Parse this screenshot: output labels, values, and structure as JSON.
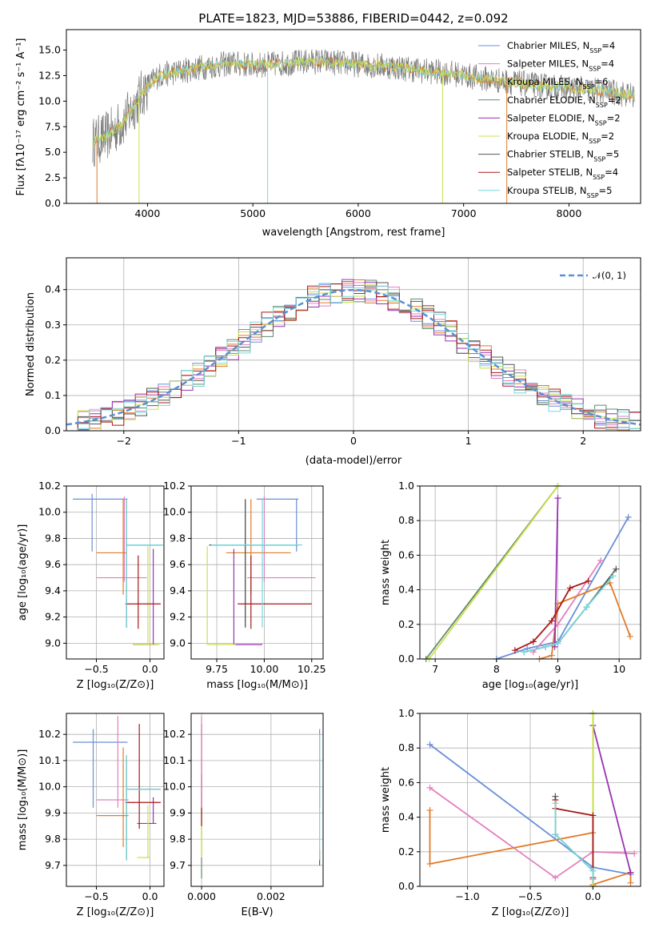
{
  "colors": [
    "#6a8fd8",
    "#e37fbf",
    "#e07b2a",
    "#5f8a6a",
    "#9a32b0",
    "#ccdf48",
    "#555555",
    "#a81818",
    "#78d7dd"
  ],
  "chart_data": [
    {
      "type": "line",
      "title": "PLATE=1823, MJD=53886, FIBERID=0442, z=0.092",
      "xlabel": "wavelength [Angstrom, rest frame]",
      "ylabel": "Flux [fλ10⁻¹⁷ erg cm⁻² s⁻¹ A⁻¹]",
      "xlim": [
        3230,
        8680
      ],
      "ylim": [
        0,
        17
      ],
      "xticks": [
        4000,
        5000,
        6000,
        7000,
        8000
      ],
      "yticks": [
        "0.0",
        "2.5",
        "5.0",
        "7.5",
        "10.0",
        "12.5",
        "15.0"
      ],
      "legend_position": "top-right",
      "series": [
        {
          "name": "Chabrier MILES, N_SSP=4"
        },
        {
          "name": "Salpeter MILES, N_SSP=4"
        },
        {
          "name": "Kroupa MILES, N_SSP=6"
        },
        {
          "name": "Chabrier ELODIE, N_SSP=2"
        },
        {
          "name": "Salpeter ELODIE, N_SSP=2"
        },
        {
          "name": "Kroupa ELODIE, N_SSP=2"
        },
        {
          "name": "Chabrier STELIB, N_SSP=5"
        },
        {
          "name": "Salpeter STELIB, N_SSP=4"
        },
        {
          "name": "Kroupa STELIB, N_SSP=5"
        }
      ],
      "continuum": {
        "x": [
          3480,
          3600,
          3700,
          3800,
          3900,
          4000,
          4100,
          4300,
          4500,
          4800,
          5000,
          5300,
          5600,
          6000,
          6300,
          6600,
          6900,
          7200,
          7500,
          7800,
          8100,
          8300,
          8600
        ],
        "y": [
          6.0,
          6.5,
          7.3,
          8.3,
          10.0,
          11.5,
          12.5,
          12.9,
          13.3,
          13.7,
          13.5,
          13.7,
          13.9,
          13.6,
          13.4,
          13.0,
          12.7,
          12.2,
          11.8,
          11.4,
          11.2,
          11.0,
          10.6
        ]
      }
    },
    {
      "type": "line",
      "xlabel": "(data-model)/error",
      "ylabel": "Normed distribution",
      "xlim": [
        -2.5,
        2.5
      ],
      "ylim": [
        0,
        0.49
      ],
      "xticks": [
        -2,
        -1,
        0,
        1,
        2
      ],
      "yticks": [
        "0.0",
        "0.1",
        "0.2",
        "0.3",
        "0.4"
      ],
      "legend": [
        "𝒩(0, 1)"
      ],
      "legend_position": "top-right",
      "hist_bins": [
        -2.5,
        -2.4,
        -2.3,
        -2.2,
        -2.1,
        -2.0,
        -1.9,
        -1.8,
        -1.7,
        -1.6,
        -1.5,
        -1.4,
        -1.3,
        -1.2,
        -1.1,
        -1.0,
        -0.9,
        -0.8,
        -0.7,
        -0.6,
        -0.5,
        -0.4,
        -0.3,
        -0.2,
        -0.1,
        0.0,
        0.1,
        0.2,
        0.3,
        0.4,
        0.5,
        0.6,
        0.7,
        0.8,
        0.9,
        1.0,
        1.1,
        1.2,
        1.3,
        1.4,
        1.5,
        1.6,
        1.7,
        1.8,
        1.9,
        2.0,
        2.1,
        2.2,
        2.3,
        2.4,
        2.5
      ]
    },
    {
      "type": "scatter",
      "xlabel": "Z [log₁₀(Z/Z⊙)]",
      "ylabel": "age  [log₁₀(age/yr)]",
      "xlim": [
        -0.78,
        0.13
      ],
      "ylim": [
        8.88,
        10.2
      ],
      "xticks": [
        "−0.5",
        "0.0"
      ],
      "yticks": [
        "9.0",
        "9.2",
        "9.4",
        "9.6",
        "9.8",
        "10.0",
        "10.2"
      ],
      "points": [
        {
          "s": 0,
          "x": -0.54,
          "y": 10.1,
          "xe": [
            -0.72,
            -0.21
          ],
          "ye": [
            9.7,
            10.14
          ]
        },
        {
          "s": 1,
          "x": -0.24,
          "y": 9.5,
          "xe": [
            -0.5,
            -0.03
          ],
          "ye": [
            9.47,
            10.12
          ]
        },
        {
          "s": 2,
          "x": -0.25,
          "y": 9.69,
          "xe": [
            -0.5,
            -0.22
          ],
          "ye": [
            9.37,
            10.1
          ]
        },
        {
          "s": 3,
          "x": -0.22,
          "y": 9.75,
          "xe": [
            -0.22,
            0.1
          ],
          "ye": [
            9.12,
            10.1
          ]
        },
        {
          "s": 4,
          "x": 0.03,
          "y": 8.99,
          "xe": [
            -0.16,
            0.06
          ],
          "ye": [
            8.99,
            9.72
          ]
        },
        {
          "s": 5,
          "x": -0.02,
          "y": 8.99,
          "xe": [
            -0.16,
            0.09
          ],
          "ye": [
            8.99,
            9.74
          ]
        },
        {
          "s": 6,
          "x": -0.22,
          "y": 9.75,
          "xe": [
            -0.22,
            0.12
          ],
          "ye": [
            9.12,
            10.1
          ]
        },
        {
          "s": 7,
          "x": -0.11,
          "y": 9.3,
          "xe": [
            -0.23,
            0.1
          ],
          "ye": [
            9.11,
            9.67
          ]
        },
        {
          "s": 8,
          "x": -0.22,
          "y": 9.75,
          "xe": [
            -0.22,
            0.12
          ],
          "ye": [
            9.12,
            10.1
          ]
        }
      ]
    },
    {
      "type": "scatter",
      "xlabel": "mass [log₁₀(M/M⊙)]",
      "ylabel": "",
      "xlim": [
        9.615,
        10.31
      ],
      "ylim": [
        8.88,
        10.2
      ],
      "xticks": [
        "9.75",
        "10.00",
        "10.25"
      ],
      "yticks": [
        "9.0",
        "9.2",
        "9.4",
        "9.6",
        "9.8",
        "10.0",
        "10.2"
      ],
      "points": [
        {
          "s": 0,
          "x": 10.17,
          "y": 10.1,
          "xe": [
            9.96,
            10.18
          ],
          "ye": [
            9.7,
            10.1
          ]
        },
        {
          "s": 1,
          "x": 10.0,
          "y": 9.5,
          "xe": [
            9.91,
            10.27
          ],
          "ye": [
            9.47,
            10.12
          ]
        },
        {
          "s": 2,
          "x": 9.93,
          "y": 9.69,
          "xe": [
            9.8,
            10.14
          ],
          "ye": [
            9.37,
            10.1
          ]
        },
        {
          "s": 3,
          "x": 9.9,
          "y": 9.75,
          "xe": [
            9.71,
            10.18
          ],
          "ye": [
            9.12,
            10.1
          ]
        },
        {
          "s": 4,
          "x": 9.84,
          "y": 8.99,
          "xe": [
            9.84,
            9.99
          ],
          "ye": [
            8.99,
            9.72
          ]
        },
        {
          "s": 5,
          "x": 9.7,
          "y": 8.99,
          "xe": [
            9.7,
            9.85
          ],
          "ye": [
            8.99,
            9.74
          ]
        },
        {
          "s": 6,
          "x": 9.9,
          "y": 9.75,
          "xe": [
            9.71,
            10.18
          ],
          "ye": [
            9.12,
            10.1
          ]
        },
        {
          "s": 7,
          "x": 9.93,
          "y": 9.3,
          "xe": [
            9.86,
            10.25
          ],
          "ye": [
            9.11,
            9.67
          ]
        },
        {
          "s": 8,
          "x": 9.99,
          "y": 9.75,
          "xe": [
            9.72,
            10.2
          ],
          "ye": [
            9.12,
            10.1
          ]
        }
      ]
    },
    {
      "type": "line",
      "xlabel": "age  [log₁₀(age/yr)]",
      "ylabel": "mass weight",
      "xlim": [
        6.75,
        10.35
      ],
      "ylim": [
        0,
        1.0
      ],
      "xticks": [
        "7",
        "8",
        "9",
        "10"
      ],
      "yticks": [
        "0.0",
        "0.2",
        "0.4",
        "0.6",
        "0.8",
        "1.0"
      ],
      "series": [
        {
          "s": 0,
          "x": [
            8.0,
            8.5,
            9.0,
            10.15
          ],
          "y": [
            0.0,
            0.06,
            0.1,
            0.82
          ]
        },
        {
          "s": 1,
          "x": [
            8.6,
            9.0,
            9.7
          ],
          "y": [
            0.04,
            0.2,
            0.57
          ]
        },
        {
          "s": 2,
          "x": [
            8.7,
            8.9,
            9.0,
            9.85,
            10.18
          ],
          "y": [
            0.0,
            0.02,
            0.32,
            0.44,
            0.13
          ]
        },
        {
          "s": 3,
          "x": [
            6.85,
            9.0
          ],
          "y": [
            0.0,
            1.0
          ]
        },
        {
          "s": 4,
          "x": [
            8.95,
            9.0
          ],
          "y": [
            0.07,
            0.93
          ]
        },
        {
          "s": 5,
          "x": [
            6.9,
            9.0
          ],
          "y": [
            0.0,
            1.0
          ]
        },
        {
          "s": 6,
          "x": [
            8.45,
            8.8,
            9.0,
            9.47,
            9.95
          ],
          "y": [
            0.04,
            0.07,
            0.09,
            0.3,
            0.52
          ]
        },
        {
          "s": 7,
          "x": [
            8.3,
            8.6,
            8.9,
            9.2,
            9.5
          ],
          "y": [
            0.05,
            0.1,
            0.22,
            0.41,
            0.45
          ]
        },
        {
          "s": 8,
          "x": [
            8.45,
            8.8,
            9.0,
            9.47,
            9.9
          ],
          "y": [
            0.04,
            0.07,
            0.09,
            0.3,
            0.48
          ]
        }
      ]
    },
    {
      "type": "scatter",
      "xlabel": "Z [log₁₀(Z/Z⊙)]",
      "ylabel": "mass [log₁₀(M/M⊙)]",
      "xlim": [
        -0.78,
        0.13
      ],
      "ylim": [
        9.62,
        10.28
      ],
      "xticks": [
        "−0.5",
        "0.0"
      ],
      "yticks": [
        "9.7",
        "9.8",
        "9.9",
        "10.0",
        "10.1",
        "10.2"
      ],
      "points": [
        {
          "s": 0,
          "x": -0.53,
          "y": 10.17,
          "xe": [
            -0.72,
            -0.21
          ],
          "ye": [
            9.92,
            10.22
          ]
        },
        {
          "s": 1,
          "x": -0.3,
          "y": 9.95,
          "xe": [
            -0.5,
            -0.2
          ],
          "ye": [
            9.92,
            10.27
          ]
        },
        {
          "s": 2,
          "x": -0.25,
          "y": 9.89,
          "xe": [
            -0.5,
            -0.2
          ],
          "ye": [
            9.77,
            10.15
          ]
        },
        {
          "s": 3,
          "x": -0.22,
          "y": 9.99,
          "xe": [
            -0.22,
            0.1
          ],
          "ye": [
            9.72,
            10.1
          ]
        },
        {
          "s": 4,
          "x": 0.03,
          "y": 9.86,
          "xe": [
            -0.12,
            0.06
          ],
          "ye": [
            9.86,
            9.96
          ]
        },
        {
          "s": 5,
          "x": -0.02,
          "y": 9.73,
          "xe": [
            -0.12,
            0.0
          ],
          "ye": [
            9.73,
            9.93
          ]
        },
        {
          "s": 6,
          "x": -0.22,
          "y": 9.99,
          "xe": [
            -0.22,
            0.1
          ],
          "ye": [
            9.72,
            10.12
          ]
        },
        {
          "s": 7,
          "x": -0.1,
          "y": 9.94,
          "xe": [
            -0.23,
            0.1
          ],
          "ye": [
            9.84,
            10.24
          ]
        },
        {
          "s": 8,
          "x": -0.22,
          "y": 9.99,
          "xe": [
            -0.22,
            0.1
          ],
          "ye": [
            9.72,
            10.12
          ]
        }
      ]
    },
    {
      "type": "scatter",
      "xlabel": "E(B-V)",
      "ylabel": "",
      "xlim": [
        -0.0003,
        0.0035
      ],
      "ylim": [
        9.62,
        10.28
      ],
      "xticks": [
        "0.000",
        "0.002"
      ],
      "yticks": [
        "9.7",
        "9.8",
        "9.9",
        "10.0",
        "10.1",
        "10.2"
      ],
      "points": [
        {
          "s": 0,
          "x": 0.0034,
          "y": 10.17,
          "ye": [
            9.92,
            10.22
          ]
        },
        {
          "s": 3,
          "x": 0.0,
          "y": 9.99,
          "ye": [
            9.65,
            10.05
          ]
        },
        {
          "s": 5,
          "x": 0.0,
          "y": 9.73,
          "ye": [
            9.73,
            9.93
          ]
        },
        {
          "s": 7,
          "x": 0.0,
          "y": 9.94,
          "ye": [
            9.85,
            10.24
          ]
        },
        {
          "s": 1,
          "x": 0.0,
          "y": 9.95,
          "ye": [
            9.92,
            10.27
          ]
        },
        {
          "s": 6,
          "x": 0.0034,
          "y": 9.72,
          "ye": [
            9.7,
            9.76
          ]
        },
        {
          "s": 8,
          "x": 0.0034,
          "y": 9.99,
          "ye": [
            9.72,
            10.2
          ]
        }
      ]
    },
    {
      "type": "line",
      "xlabel": "Z [log₁₀(Z/Z⊙)]",
      "ylabel": "mass weight",
      "xlim": [
        -1.38,
        0.38
      ],
      "ylim": [
        0,
        1.0
      ],
      "xticks": [
        "−1.0",
        "−0.5",
        "0.0"
      ],
      "yticks": [
        "0.0",
        "0.2",
        "0.4",
        "0.6",
        "0.8",
        "1.0"
      ],
      "series": [
        {
          "s": 0,
          "x": [
            -1.3,
            0.0,
            0.3
          ],
          "y": [
            0.82,
            0.11,
            0.07
          ]
        },
        {
          "s": 1,
          "x": [
            -1.3,
            -0.3,
            0.0,
            0.33
          ],
          "y": [
            0.57,
            0.05,
            0.2,
            0.19
          ]
        },
        {
          "s": 2,
          "x": [
            -1.3,
            -1.3,
            0.0,
            0.0,
            0.3,
            0.3
          ],
          "y": [
            0.44,
            0.13,
            0.31,
            0.01,
            0.08,
            0.02
          ]
        },
        {
          "s": 3,
          "x": [
            0.0,
            0.0
          ],
          "y": [
            0.0,
            1.0
          ]
        },
        {
          "s": 4,
          "x": [
            0.0,
            0.3
          ],
          "y": [
            0.93,
            0.08
          ]
        },
        {
          "s": 5,
          "x": [
            0.0,
            0.0
          ],
          "y": [
            0.0,
            1.0
          ]
        },
        {
          "s": 6,
          "x": [
            -0.3,
            -0.3,
            0.0,
            0.0
          ],
          "y": [
            0.52,
            0.3,
            0.09,
            0.04
          ]
        },
        {
          "s": 7,
          "x": [
            -0.3,
            -0.3,
            0.0,
            0.0
          ],
          "y": [
            0.5,
            0.45,
            0.41,
            0.05
          ]
        },
        {
          "s": 8,
          "x": [
            -0.3,
            -0.3,
            0.0,
            0.0
          ],
          "y": [
            0.48,
            0.3,
            0.09,
            0.04
          ]
        }
      ]
    }
  ]
}
